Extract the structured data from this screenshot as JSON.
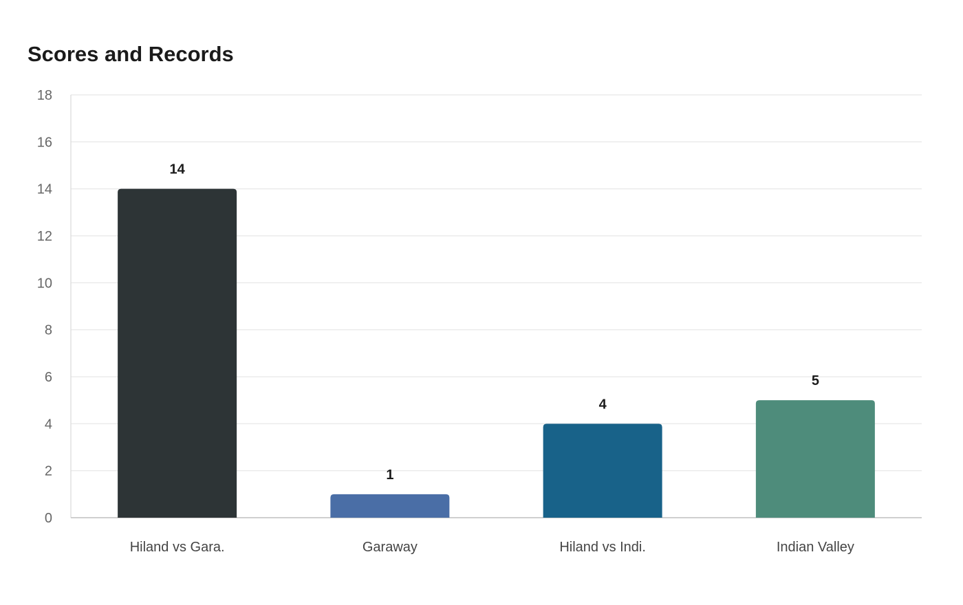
{
  "chart_data": {
    "type": "bar",
    "title": "Scores and Records",
    "categories": [
      "Hiland vs Gara.",
      "Garaway",
      "Hiland vs Indi.",
      "Indian Valley"
    ],
    "values": [
      14,
      1,
      4,
      5
    ],
    "data_labels": [
      "14",
      "1",
      "4",
      "5"
    ],
    "colors": [
      "#2d3436",
      "#4a6ea6",
      "#186289",
      "#4e8c7b"
    ],
    "xlabel": "",
    "ylabel": "",
    "ylim": [
      0,
      18
    ],
    "yticks": [
      0,
      2,
      4,
      6,
      8,
      10,
      12,
      14,
      16,
      18
    ],
    "grid": true,
    "legend": "none"
  }
}
